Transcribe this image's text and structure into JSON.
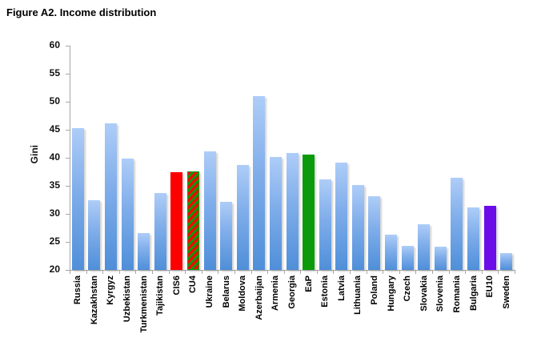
{
  "title": "Figure A2. Income distribution",
  "chart_data": {
    "type": "bar",
    "title": "Figure A2. Income distribution",
    "xlabel": "",
    "ylabel": "Gini",
    "ylim": [
      20,
      60
    ],
    "ytick_step": 5,
    "grid": false,
    "legend_position": "none",
    "categories": [
      "Russia",
      "Kazakhstan",
      "Kyrgyz",
      "Uzbekistan",
      "Turkmenistan",
      "Tajikistan",
      "CIS6",
      "CU4",
      "Ukraine",
      "Belarus",
      "Moldova",
      "Azerbaijan",
      "Armenia",
      "Georgia",
      "EaP",
      "Estonia",
      "Latvia",
      "Lithuania",
      "Poland",
      "Hungary",
      "Czech",
      "Slovakia",
      "Slovenia",
      "Romania",
      "Bulgaria",
      "EU10",
      "Sweden"
    ],
    "values": [
      45.3,
      32.5,
      46.2,
      39.8,
      26.6,
      33.7,
      37.4,
      37.6,
      41.2,
      32.2,
      38.7,
      51.0,
      40.1,
      40.9,
      40.6,
      36.2,
      39.1,
      35.1,
      33.1,
      26.3,
      24.3,
      28.1,
      24.1,
      36.5,
      31.2,
      31.4,
      23.0
    ],
    "bar_styles": [
      "blue",
      "blue",
      "blue",
      "blue",
      "blue",
      "blue",
      "red",
      "hatched",
      "blue",
      "blue",
      "blue",
      "blue",
      "blue",
      "blue",
      "green",
      "blue",
      "blue",
      "blue",
      "blue",
      "blue",
      "blue",
      "blue",
      "blue",
      "blue",
      "blue",
      "purple",
      "blue"
    ],
    "colors": {
      "bar_blue_top": "#aecdf8",
      "bar_blue_bottom": "#4f8fd9",
      "bar_red": "#fe0000",
      "bar_green": "#0a9a0a",
      "bar_purple": "#6b0ce9",
      "hatch_stripe_red": "#fe0000",
      "hatch_stripe_green": "#0a9a0a",
      "axis_gray": "#a6a6a6",
      "text_black": "#000000"
    }
  }
}
